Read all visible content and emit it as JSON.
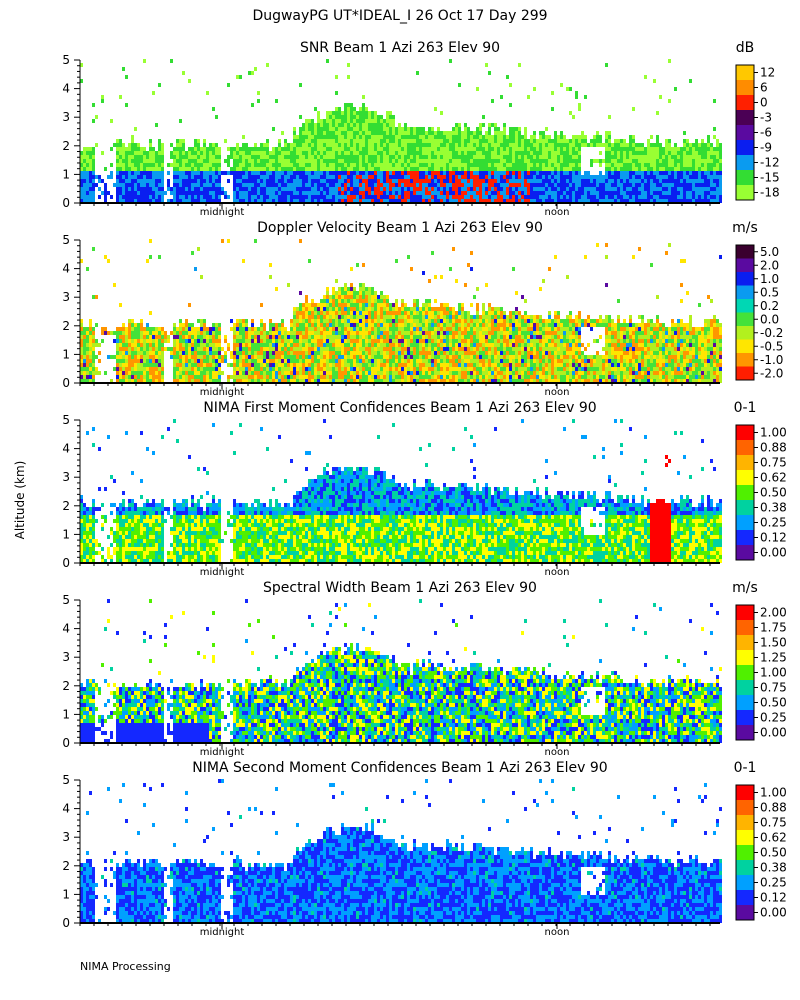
{
  "title": "DugwayPG UT*IDEAL_I  26 Oct 17 Day 299",
  "ylabel": "Altitude (km)",
  "footer": "NIMA Processing",
  "x_ticks": [
    "midnight",
    "noon"
  ],
  "y_ticks": [
    "0",
    "1",
    "2",
    "3",
    "4",
    "5"
  ],
  "chart_data": [
    {
      "type": "heatmap",
      "title": "SNR Beam 1 Azi 263 Elev 90",
      "unit": "dB",
      "ylim": [
        0,
        5
      ],
      "colorbar": {
        "labels": [
          "12",
          "6",
          "0",
          "-3",
          "-6",
          "-9",
          "-12",
          "-15",
          "-18"
        ],
        "colors": [
          "#ffc800",
          "#ff8c00",
          "#ff2000",
          "#4b0055",
          "#5a0aa0",
          "#0a1ef0",
          "#0a9bf0",
          "#33dd33",
          "#99ff33"
        ]
      }
    },
    {
      "type": "heatmap",
      "title": "Doppler Velocity Beam 1 Azi 263 Elev 90",
      "unit": "m/s",
      "ylim": [
        0,
        5
      ],
      "colorbar": {
        "labels": [
          "5.0",
          "2.0",
          "1.0",
          "0.5",
          "0.2",
          "0.0",
          "-0.2",
          "-0.5",
          "-1.0",
          "-2.0"
        ],
        "colors": [
          "#3a002e",
          "#5a0aa0",
          "#0a1ef0",
          "#0a9bf0",
          "#00d7b4",
          "#44e23a",
          "#b2f01e",
          "#ffe600",
          "#ff9600",
          "#ff1e00"
        ]
      }
    },
    {
      "type": "heatmap",
      "title": "NIMA First Moment Confidences Beam 1 Azi 263 Elev 90",
      "unit": "0-1",
      "ylim": [
        0,
        5
      ],
      "colorbar": {
        "labels": [
          "1.00",
          "0.88",
          "0.75",
          "0.62",
          "0.50",
          "0.38",
          "0.25",
          "0.12",
          "0.00"
        ],
        "colors": [
          "#ff0000",
          "#ff6400",
          "#ffb400",
          "#ffff00",
          "#50f000",
          "#00d2a0",
          "#00a0ff",
          "#1428ff",
          "#5a0aa0"
        ]
      }
    },
    {
      "type": "heatmap",
      "title": "Spectral Width Beam 1 Azi 263 Elev 90",
      "unit": "m/s",
      "ylim": [
        0,
        5
      ],
      "colorbar": {
        "labels": [
          "2.00",
          "1.75",
          "1.50",
          "1.25",
          "1.00",
          "0.75",
          "0.50",
          "0.25",
          "0.00"
        ],
        "colors": [
          "#ff0000",
          "#ff6400",
          "#ffb400",
          "#ffff00",
          "#50f000",
          "#00d2a0",
          "#00a0ff",
          "#1428ff",
          "#5a0aa0"
        ]
      }
    },
    {
      "type": "heatmap",
      "title": "NIMA Second Moment Confidences Beam 1 Azi 263 Elev 90",
      "unit": "0-1",
      "ylim": [
        0,
        5
      ],
      "colorbar": {
        "labels": [
          "1.00",
          "0.88",
          "0.75",
          "0.62",
          "0.50",
          "0.38",
          "0.25",
          "0.12",
          "0.00"
        ],
        "colors": [
          "#ff0000",
          "#ff6400",
          "#ffb400",
          "#ffff00",
          "#50f000",
          "#00d2a0",
          "#00a0ff",
          "#1428ff",
          "#5a0aa0"
        ]
      }
    }
  ]
}
